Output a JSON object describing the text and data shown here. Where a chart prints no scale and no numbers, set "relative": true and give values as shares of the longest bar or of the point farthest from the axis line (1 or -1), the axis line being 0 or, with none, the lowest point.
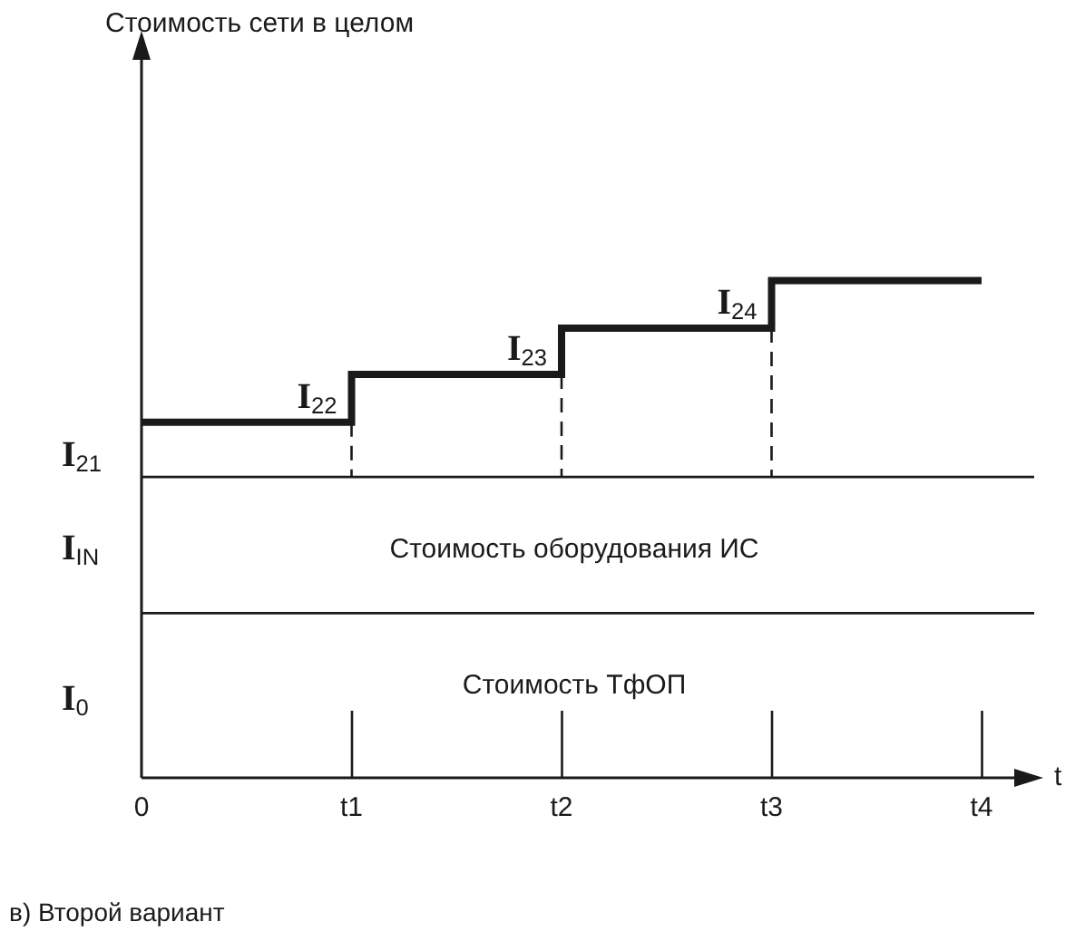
{
  "chart_data": {
    "type": "step",
    "relative": true,
    "xlabel": "t",
    "categories": [
      "0",
      "t1",
      "t2",
      "t3",
      "t4"
    ],
    "series": [
      {
        "color": "#1a1a1a",
        "values": [
          0.715,
          0.811,
          0.904,
          1,
          1
        ]
      }
    ],
    "ref_lines": [
      {
        "axis": "y",
        "value": 0.605,
        "color": "#1a1a1a"
      },
      {
        "axis": "y",
        "value": 0.331,
        "color": "#1a1a1a"
      }
    ],
    "annotations": [
      {
        "text": "I$_{21}$",
        "x": "0",
        "y": 0.605
      },
      {
        "text": "I$_{22}$",
        "x": "t1",
        "y": 0.715
      },
      {
        "text": "I$_{23}$",
        "x": "t2",
        "y": 0.811
      },
      {
        "text": "I$_{24}$",
        "x": "t3",
        "y": 0.904
      },
      "Стоимость сети в целом",
      "I$_{IN}$",
      "I$_{0}$",
      "Стоимость оборудования ИС",
      "Стоимость ТфОП",
      "в) Второй вариант"
    ]
  }
}
